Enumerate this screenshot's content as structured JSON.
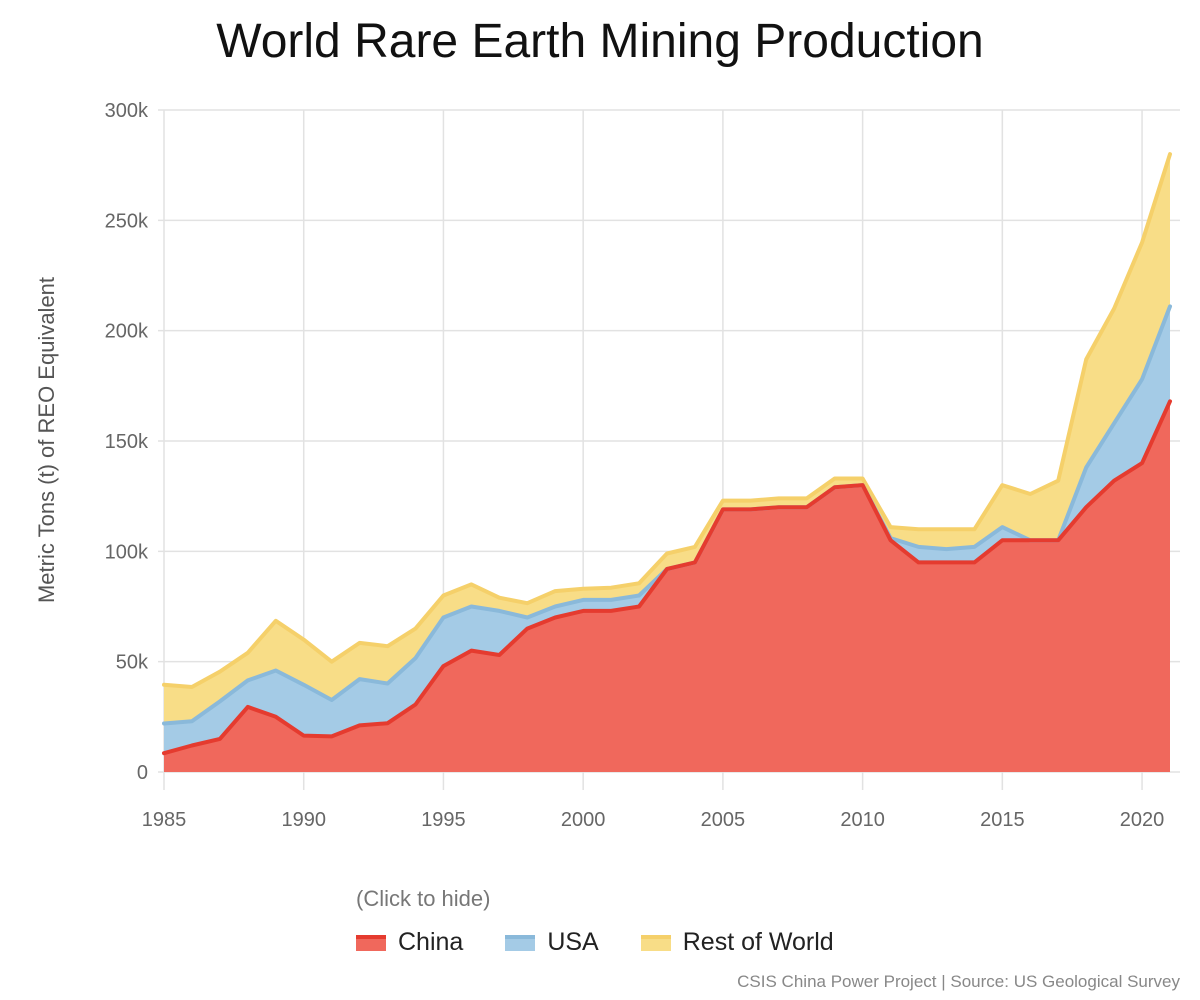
{
  "chart_data": {
    "type": "area",
    "stacked": true,
    "title": "World Rare Earth Mining Production",
    "xlabel": "",
    "ylabel": "Metric Tons (t) of REO Equivalent",
    "x": [
      1985,
      1986,
      1987,
      1988,
      1989,
      1990,
      1991,
      1992,
      1993,
      1994,
      1995,
      1996,
      1997,
      1998,
      1999,
      2000,
      2001,
      2002,
      2003,
      2004,
      2005,
      2006,
      2007,
      2008,
      2009,
      2010,
      2011,
      2012,
      2013,
      2014,
      2015,
      2016,
      2017,
      2018,
      2019,
      2020,
      2021
    ],
    "xlim": [
      1985,
      2021
    ],
    "ylim": [
      0,
      300000
    ],
    "xticks": [
      1985,
      1990,
      1995,
      2000,
      2005,
      2010,
      2015,
      2020
    ],
    "xtick_labels": [
      "1985",
      "1990",
      "1995",
      "2000",
      "2005",
      "2010",
      "2015",
      "2020"
    ],
    "yticks": [
      0,
      50000,
      100000,
      150000,
      200000,
      250000,
      300000
    ],
    "ytick_labels": [
      "0",
      "50k",
      "100k",
      "150k",
      "200k",
      "250k",
      "300k"
    ],
    "series": [
      {
        "name": "China",
        "color": "#e53b2f",
        "fill": "#f0685c",
        "values": [
          8500,
          12000,
          15000,
          29500,
          25000,
          16500,
          16150,
          21100,
          22100,
          30600,
          48000,
          55000,
          53000,
          65000,
          70000,
          73000,
          73000,
          75000,
          92000,
          95000,
          119000,
          119000,
          120000,
          120000,
          129000,
          130000,
          105000,
          95000,
          95000,
          95000,
          105000,
          105000,
          105000,
          120000,
          132000,
          140000,
          168000
        ]
      },
      {
        "name": "USA",
        "color": "#8ab9da",
        "fill": "#a4cbe6",
        "values": [
          13500,
          11000,
          17000,
          12000,
          21000,
          23000,
          16500,
          21000,
          18000,
          21000,
          22000,
          20000,
          20000,
          5000,
          5000,
          5000,
          5000,
          5000,
          0,
          0,
          0,
          0,
          0,
          0,
          0,
          0,
          1000,
          7000,
          6000,
          7000,
          6000,
          0,
          0,
          18000,
          26000,
          38000,
          43000
        ]
      },
      {
        "name": "Rest of World",
        "color": "#f5d06a",
        "fill": "#f8dd87",
        "values": [
          17500,
          15500,
          13500,
          12500,
          22500,
          20500,
          17350,
          16400,
          16900,
          13400,
          10000,
          10000,
          6000,
          6500,
          7000,
          5000,
          5500,
          5500,
          7000,
          7000,
          4000,
          4000,
          4000,
          4000,
          4000,
          3000,
          5000,
          8000,
          9000,
          8000,
          19000,
          21000,
          27000,
          49000,
          52000,
          62000,
          69000
        ]
      }
    ],
    "legend_position": "bottom"
  },
  "legend": {
    "hint": "(Click to hide)",
    "items": [
      {
        "label": "China"
      },
      {
        "label": "USA"
      },
      {
        "label": "Rest of World"
      }
    ]
  },
  "source": "CSIS China Power Project | Source: US Geological Survey"
}
